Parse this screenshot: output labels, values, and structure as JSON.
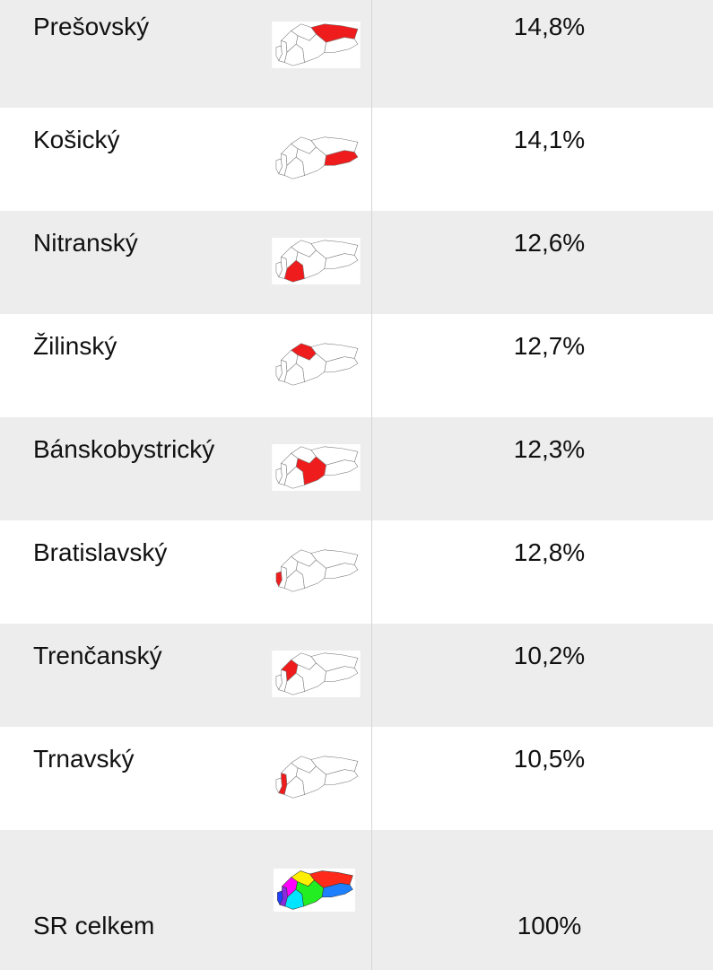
{
  "table": {
    "rows": [
      [
        "Prešovský",
        "14,8%"
      ],
      [
        "Košický",
        "14,1%"
      ],
      [
        "Nitranský",
        "12,6%"
      ],
      [
        "Žilinský",
        "12,7%"
      ],
      [
        "Bánskobystrický",
        "12,3%"
      ],
      [
        "Bratislavský",
        "12,8%"
      ],
      [
        "Trenčanský",
        "10,2%"
      ],
      [
        "Trnavský",
        "10,5%"
      ],
      [
        "SR celkem",
        "100%"
      ]
    ]
  }
}
